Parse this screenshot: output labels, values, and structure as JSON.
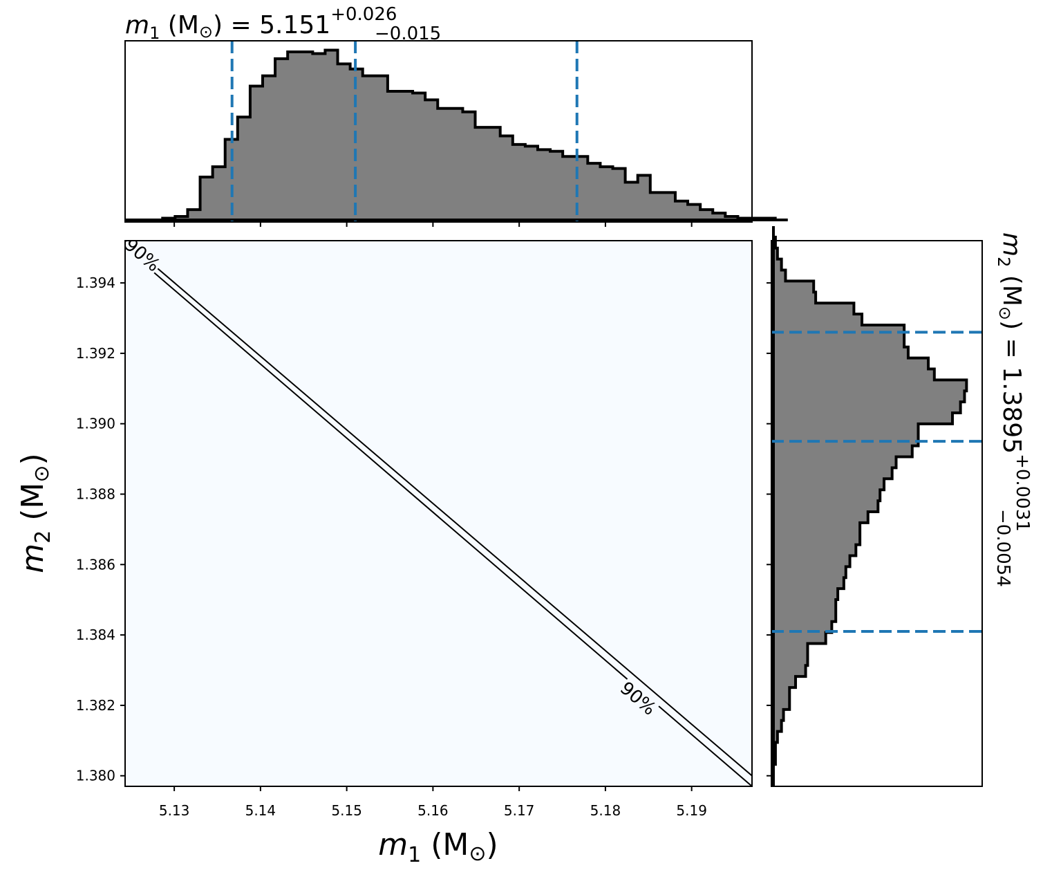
{
  "chart_data": [
    {
      "type": "heatmap",
      "panel": "joint",
      "xlabel": "m1 (M⊙)",
      "ylabel": "m2 (M⊙)",
      "xlim": [
        5.1243,
        5.197
      ],
      "ylim": [
        1.3797,
        1.3952
      ],
      "x_ticks": [
        "5.13",
        "5.14",
        "5.15",
        "5.16",
        "5.17",
        "5.18",
        "5.19"
      ],
      "x_tick_values": [
        5.13,
        5.14,
        5.15,
        5.16,
        5.17,
        5.18,
        5.19
      ],
      "y_ticks": [
        "1.380",
        "1.382",
        "1.384",
        "1.386",
        "1.388",
        "1.390",
        "1.392",
        "1.394"
      ],
      "y_tick_values": [
        1.38,
        1.382,
        1.384,
        1.386,
        1.388,
        1.39,
        1.392,
        1.394
      ],
      "background_color": "#f7fbff",
      "contours": [
        {
          "label": "90%",
          "points": [
            [
              5.1243,
              1.395
            ],
            [
              5.197,
              1.3797
            ]
          ]
        },
        {
          "label": "90%",
          "points": [
            [
              5.1243,
              1.3952
            ],
            [
              5.197,
              1.38
            ]
          ]
        }
      ],
      "contour_labels": [
        {
          "text": "90%",
          "x": 5.1263,
          "y": 1.3948
        },
        {
          "text": "90%",
          "x": 5.1838,
          "y": 1.3822
        }
      ]
    },
    {
      "type": "histogram",
      "panel": "m1-marginal",
      "title": {
        "prefix": "m",
        "sub": "1",
        "unit": " (M",
        "sun": "⊙",
        "mid": ") = 5.151",
        "sup": "+0.026",
        "subv": "−0.015"
      },
      "xlim": [
        5.1243,
        5.197
      ],
      "bin_edges_start": 5.1243,
      "bin_width": 0.00145,
      "counts": [
        0,
        0,
        0,
        1,
        2,
        6,
        25,
        31,
        47,
        60,
        78,
        84,
        94,
        98,
        98,
        97,
        99,
        91,
        88,
        84,
        84,
        75,
        75,
        74,
        70,
        65,
        65,
        63,
        54,
        54,
        49,
        44,
        43,
        41,
        40,
        37,
        37,
        33,
        31,
        30,
        22,
        26,
        16,
        16,
        11,
        9,
        6,
        4,
        2,
        1,
        1,
        1,
        0
      ],
      "ymax": 100,
      "quantiles": [
        5.1367,
        5.151,
        5.1767
      ],
      "color": "#808080",
      "quantile_color": "#1f77b4"
    },
    {
      "type": "histogram",
      "orientation": "horizontal",
      "panel": "m2-marginal",
      "title": {
        "prefix": "m",
        "sub": "2",
        "unit": " (M",
        "sun": "⊙",
        "mid": ") = 1.3895",
        "sup": "+0.0031",
        "subv": "−0.0054"
      },
      "ylim": [
        1.3797,
        1.3952
      ],
      "bin_edges_start": 1.3797,
      "bin_width": 0.000312,
      "counts": [
        0,
        0,
        1,
        1,
        2,
        4,
        5,
        8,
        8,
        11,
        16,
        17,
        17,
        26,
        29,
        31,
        31,
        32,
        35,
        36,
        38,
        41,
        43,
        43,
        47,
        52,
        53,
        55,
        59,
        61,
        69,
        72,
        72,
        89,
        93,
        95,
        96,
        80,
        77,
        67,
        65,
        65,
        44,
        40,
        21,
        20,
        6,
        4,
        2,
        1,
        0
      ],
      "xmax": 100,
      "quantiles": [
        1.3841,
        1.3895,
        1.3926
      ],
      "color": "#808080",
      "quantile_color": "#1f77b4"
    }
  ],
  "labels": {
    "x_axis_var": "m",
    "x_axis_sub": "1",
    "x_axis_unit": " (M",
    "x_axis_sun": "⊙",
    "x_axis_close": ")",
    "y_axis_var": "m",
    "y_axis_sub": "2",
    "y_axis_unit": " (M",
    "y_axis_sun": "⊙",
    "y_axis_close": ")"
  }
}
